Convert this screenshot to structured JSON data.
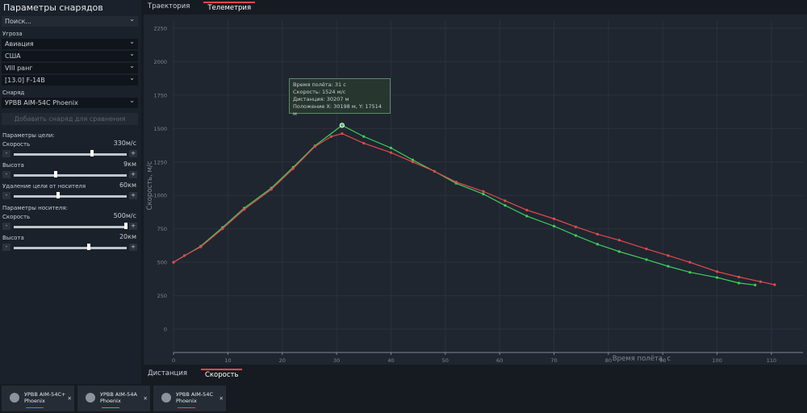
{
  "sidebar": {
    "title": "Параметры снарядов",
    "search": "Поиск...",
    "threat_label": "Угроза",
    "threat": [
      "Авиация",
      "США",
      "VIII ранг",
      "[13.0] F-14B"
    ],
    "shell_label": "Снаряд",
    "shell": "УРВВ AIM-54C Phoenix",
    "add_button": "Добавить снаряд для сравнения",
    "target_label": "Параметры цели:",
    "carrier_label": "Параметры носителя:",
    "target_params": [
      {
        "label": "Скорость",
        "value": "330м/с"
      },
      {
        "label": "Высота",
        "value": "9км"
      },
      {
        "label": "Удаление цели от носителя",
        "value": "60км"
      }
    ],
    "carrier_params": [
      {
        "label": "Скорость",
        "value": "500м/с"
      },
      {
        "label": "Высота",
        "value": "20км"
      }
    ]
  },
  "top_tabs": [
    "Траектория",
    "Телеметрия"
  ],
  "bottom_tabs": [
    "Дистанция",
    "Скорость"
  ],
  "tooltip": [
    "Время полёта: 31 с",
    "Скорость: 1524 м/с",
    "Дистанция: 30207 м",
    "Положение X: 30198 м, Y: 17514 м"
  ],
  "cards": [
    {
      "lines": [
        "УРВВ AIM-54C+",
        "Phoenix"
      ],
      "color": "#3b82f6"
    },
    {
      "lines": [
        "УРВВ AIM-54A",
        "Phoenix"
      ],
      "color": "#22c55e"
    },
    {
      "lines": [
        "УРВВ AIM-54C",
        "Phoenix"
      ],
      "color": "#ef4444"
    }
  ],
  "chart_data": {
    "type": "line",
    "x_label": "Время полёта, с",
    "y_label": "Скорость, м/с",
    "xlim": [
      -5.5,
      115.8
    ],
    "ylim": [
      -265,
      2310
    ],
    "xticks": [
      0,
      10,
      20,
      30,
      40,
      50,
      60,
      70,
      80,
      90,
      100,
      110
    ],
    "yticks": [
      0,
      250,
      500,
      750,
      1000,
      1250,
      1500,
      1750,
      2000,
      2250
    ],
    "grid": true,
    "series": [
      {
        "color": "#3ecf5a",
        "x": [
          0,
          5,
          9,
          13,
          18,
          22,
          26,
          31,
          35,
          40,
          44,
          48,
          52,
          57,
          61,
          65,
          70,
          74,
          78,
          82,
          87,
          91,
          95,
          100,
          104,
          107
        ],
        "values": [
          500,
          620,
          760,
          905,
          1055,
          1210,
          1370,
          1524,
          1440,
          1355,
          1265,
          1180,
          1090,
          1010,
          925,
          845,
          770,
          700,
          635,
          580,
          520,
          470,
          425,
          386,
          345,
          330
        ]
      },
      {
        "color": "#e5484d",
        "x": [
          0,
          2,
          5,
          9,
          13,
          18,
          22,
          26,
          29,
          31,
          35,
          40,
          44,
          48,
          52,
          57,
          61,
          65,
          70,
          74,
          78,
          82,
          87,
          91,
          95,
          100,
          104,
          108,
          110.6
        ],
        "values": [
          500,
          550,
          615,
          750,
          895,
          1045,
          1200,
          1365,
          1440,
          1462,
          1390,
          1320,
          1250,
          1180,
          1100,
          1030,
          960,
          890,
          825,
          765,
          710,
          665,
          600,
          550,
          500,
          430,
          390,
          355,
          332
        ]
      }
    ]
  }
}
